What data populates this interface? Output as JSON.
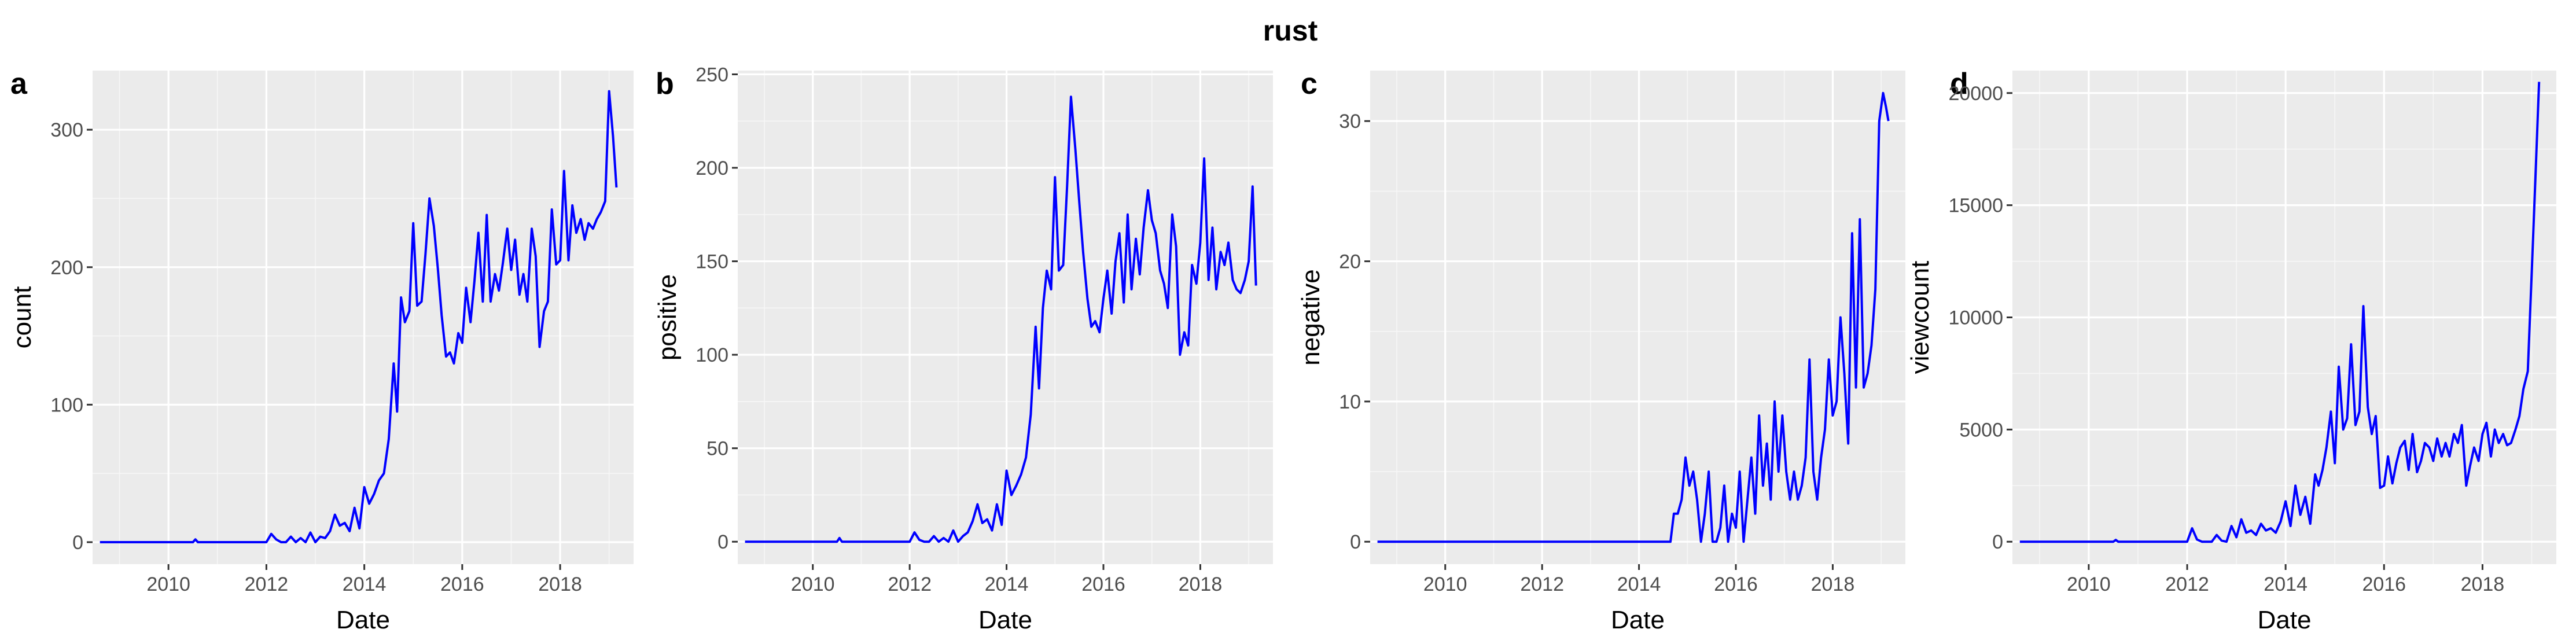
{
  "figure": {
    "title": "rust"
  },
  "chart_data": [
    {
      "panel": "a",
      "type": "line",
      "xlabel": "Date",
      "ylabel": "count",
      "x_ticks": [
        "2010",
        "2012",
        "2014",
        "2016",
        "2018"
      ],
      "y_ticks": [
        "0",
        "100",
        "200",
        "300"
      ],
      "xlim": [
        2008.45,
        2019.5
      ],
      "ylim": [
        -16,
        343
      ],
      "grid": true,
      "series": [
        {
          "color": "#0000ff",
          "x": [
            2008.6,
            2010.5,
            2010.55,
            2010.6,
            2012.0,
            2012.1,
            2012.2,
            2012.3,
            2012.4,
            2012.5,
            2012.6,
            2012.7,
            2012.8,
            2012.9,
            2013.0,
            2013.1,
            2013.2,
            2013.3,
            2013.4,
            2013.5,
            2013.6,
            2013.7,
            2013.8,
            2013.9,
            2014.0,
            2014.1,
            2014.2,
            2014.3,
            2014.4,
            2014.5,
            2014.6,
            2014.67,
            2014.75,
            2014.83,
            2014.92,
            2015.0,
            2015.08,
            2015.17,
            2015.25,
            2015.33,
            2015.42,
            2015.5,
            2015.58,
            2015.67,
            2015.75,
            2015.83,
            2015.92,
            2016.0,
            2016.08,
            2016.17,
            2016.25,
            2016.33,
            2016.42,
            2016.5,
            2016.58,
            2016.67,
            2016.75,
            2016.83,
            2016.92,
            2017.0,
            2017.08,
            2017.17,
            2017.25,
            2017.33,
            2017.42,
            2017.5,
            2017.58,
            2017.67,
            2017.75,
            2017.83,
            2017.92,
            2018.0,
            2018.08,
            2018.17,
            2018.25,
            2018.33,
            2018.42,
            2018.5,
            2018.58,
            2018.67,
            2018.75,
            2018.83,
            2018.92,
            2019.0,
            2019.08,
            2019.15
          ],
          "values": [
            0,
            0,
            2,
            0,
            0,
            6,
            2,
            0,
            0,
            4,
            0,
            3,
            0,
            7,
            0,
            4,
            3,
            8,
            20,
            12,
            14,
            8,
            25,
            10,
            40,
            28,
            35,
            45,
            50,
            75,
            130,
            95,
            178,
            160,
            168,
            232,
            172,
            175,
            210,
            250,
            230,
            200,
            165,
            135,
            138,
            130,
            152,
            145,
            185,
            160,
            190,
            225,
            175,
            238,
            175,
            195,
            183,
            203,
            228,
            198,
            220,
            180,
            195,
            175,
            228,
            208,
            142,
            168,
            175,
            242,
            202,
            205,
            270,
            205,
            245,
            225,
            235,
            220,
            232,
            228,
            235,
            240,
            248,
            328,
            295,
            258
          ]
        }
      ]
    },
    {
      "panel": "b",
      "type": "line",
      "xlabel": "Date",
      "ylabel": "positive",
      "x_ticks": [
        "2010",
        "2012",
        "2014",
        "2016",
        "2018"
      ],
      "y_ticks": [
        "0",
        "50",
        "100",
        "150",
        "200",
        "250"
      ],
      "xlim": [
        2008.45,
        2019.5
      ],
      "ylim": [
        -12,
        252
      ],
      "grid": true,
      "series": [
        {
          "color": "#0000ff",
          "x": [
            2008.6,
            2010.5,
            2010.55,
            2010.6,
            2012.0,
            2012.1,
            2012.2,
            2012.3,
            2012.4,
            2012.5,
            2012.6,
            2012.7,
            2012.8,
            2012.9,
            2013.0,
            2013.1,
            2013.2,
            2013.3,
            2013.4,
            2013.5,
            2013.6,
            2013.7,
            2013.8,
            2013.9,
            2014.0,
            2014.1,
            2014.2,
            2014.3,
            2014.4,
            2014.5,
            2014.6,
            2014.67,
            2014.75,
            2014.83,
            2014.92,
            2015.0,
            2015.08,
            2015.17,
            2015.25,
            2015.33,
            2015.42,
            2015.5,
            2015.58,
            2015.67,
            2015.75,
            2015.83,
            2015.92,
            2016.0,
            2016.08,
            2016.17,
            2016.25,
            2016.33,
            2016.42,
            2016.5,
            2016.58,
            2016.67,
            2016.75,
            2016.83,
            2016.92,
            2017.0,
            2017.08,
            2017.17,
            2017.25,
            2017.33,
            2017.42,
            2017.5,
            2017.58,
            2017.67,
            2017.75,
            2017.83,
            2017.92,
            2018.0,
            2018.08,
            2018.17,
            2018.25,
            2018.33,
            2018.42,
            2018.5,
            2018.58,
            2018.67,
            2018.75,
            2018.83,
            2018.92,
            2019.0,
            2019.08,
            2019.15
          ],
          "values": [
            0,
            0,
            2,
            0,
            0,
            5,
            1,
            0,
            0,
            3,
            0,
            2,
            0,
            6,
            0,
            3,
            5,
            11,
            20,
            10,
            12,
            6,
            20,
            9,
            38,
            25,
            30,
            36,
            45,
            68,
            115,
            82,
            125,
            145,
            135,
            195,
            145,
            148,
            190,
            238,
            210,
            182,
            155,
            130,
            115,
            118,
            112,
            130,
            145,
            122,
            150,
            165,
            128,
            175,
            135,
            162,
            143,
            168,
            188,
            172,
            165,
            145,
            138,
            125,
            175,
            158,
            100,
            112,
            105,
            148,
            138,
            160,
            205,
            140,
            168,
            135,
            155,
            148,
            160,
            140,
            135,
            133,
            140,
            150,
            190,
            137
          ]
        }
      ]
    },
    {
      "panel": "c",
      "type": "line",
      "xlabel": "Date",
      "ylabel": "negative",
      "x_ticks": [
        "2010",
        "2012",
        "2014",
        "2016",
        "2018"
      ],
      "y_ticks": [
        "0",
        "10",
        "20",
        "30"
      ],
      "xlim": [
        2008.45,
        2019.5
      ],
      "ylim": [
        -1.6,
        33.6
      ],
      "grid": true,
      "series": [
        {
          "color": "#0000ff",
          "x": [
            2008.6,
            2014.65,
            2014.72,
            2014.8,
            2014.88,
            2014.96,
            2015.04,
            2015.12,
            2015.2,
            2015.28,
            2015.36,
            2015.44,
            2015.52,
            2015.6,
            2015.68,
            2015.76,
            2015.84,
            2015.92,
            2016.0,
            2016.08,
            2016.16,
            2016.24,
            2016.32,
            2016.4,
            2016.48,
            2016.56,
            2016.64,
            2016.72,
            2016.8,
            2016.88,
            2016.96,
            2017.04,
            2017.12,
            2017.2,
            2017.28,
            2017.36,
            2017.44,
            2017.52,
            2017.6,
            2017.68,
            2017.76,
            2017.84,
            2017.92,
            2018.0,
            2018.08,
            2018.16,
            2018.24,
            2018.32,
            2018.4,
            2018.48,
            2018.56,
            2018.64,
            2018.72,
            2018.8,
            2018.88,
            2018.96,
            2019.04,
            2019.1,
            2019.15
          ],
          "values": [
            0,
            0,
            2,
            2,
            3,
            6,
            4,
            5,
            3,
            0,
            2,
            5,
            0,
            0,
            1,
            4,
            0,
            2,
            1,
            5,
            0,
            3,
            6,
            2,
            9,
            4,
            7,
            3,
            10,
            5,
            9,
            5,
            3,
            5,
            3,
            4,
            6,
            13,
            5,
            3,
            6,
            8,
            13,
            9,
            10,
            16,
            12,
            7,
            22,
            11,
            23,
            11,
            12,
            14,
            18,
            30,
            32,
            31,
            30
          ]
        }
      ]
    },
    {
      "panel": "d",
      "type": "line",
      "xlabel": "Date",
      "ylabel": "viewcount",
      "x_ticks": [
        "2010",
        "2012",
        "2014",
        "2016",
        "2018"
      ],
      "y_ticks": [
        "0",
        "5000",
        "10000",
        "15000",
        "20000"
      ],
      "xlim": [
        2008.45,
        2019.5
      ],
      "ylim": [
        -1000,
        21000
      ],
      "grid": true,
      "series": [
        {
          "color": "#0000ff",
          "x": [
            2008.6,
            2010.5,
            2010.55,
            2010.6,
            2012.0,
            2012.1,
            2012.2,
            2012.3,
            2012.5,
            2012.6,
            2012.7,
            2012.8,
            2012.9,
            2013.0,
            2013.1,
            2013.2,
            2013.3,
            2013.4,
            2013.5,
            2013.6,
            2013.7,
            2013.8,
            2013.9,
            2014.0,
            2014.1,
            2014.2,
            2014.3,
            2014.4,
            2014.5,
            2014.6,
            2014.67,
            2014.75,
            2014.83,
            2014.92,
            2015.0,
            2015.08,
            2015.17,
            2015.25,
            2015.33,
            2015.42,
            2015.5,
            2015.58,
            2015.67,
            2015.75,
            2015.83,
            2015.92,
            2016.0,
            2016.08,
            2016.17,
            2016.25,
            2016.33,
            2016.42,
            2016.5,
            2016.58,
            2016.67,
            2016.75,
            2016.83,
            2016.92,
            2017.0,
            2017.08,
            2017.17,
            2017.25,
            2017.33,
            2017.42,
            2017.5,
            2017.58,
            2017.67,
            2017.75,
            2017.83,
            2017.92,
            2018.0,
            2018.08,
            2018.17,
            2018.25,
            2018.33,
            2018.42,
            2018.5,
            2018.58,
            2018.67,
            2018.75,
            2018.83,
            2018.92,
            2019.0,
            2019.08,
            2019.15
          ],
          "values": [
            0,
            0,
            80,
            0,
            0,
            600,
            100,
            0,
            0,
            300,
            50,
            0,
            700,
            200,
            1000,
            400,
            500,
            300,
            800,
            500,
            600,
            400,
            900,
            1800,
            700,
            2500,
            1200,
            2000,
            800,
            3000,
            2500,
            3200,
            4200,
            5800,
            3500,
            7800,
            5000,
            5500,
            8800,
            5200,
            5800,
            10500,
            6000,
            4800,
            5600,
            2400,
            2500,
            3800,
            2600,
            3500,
            4200,
            4500,
            3200,
            4800,
            3100,
            3600,
            4400,
            4200,
            3600,
            4600,
            3800,
            4400,
            3800,
            4800,
            4400,
            5200,
            2500,
            3400,
            4200,
            3600,
            4800,
            5300,
            3800,
            5000,
            4400,
            4800,
            4300,
            4400,
            5000,
            5600,
            6800,
            7600,
            12000,
            16500,
            20500
          ]
        }
      ]
    }
  ]
}
